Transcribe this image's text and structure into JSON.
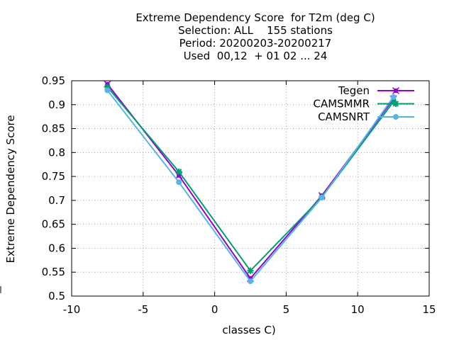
{
  "chart_data": {
    "type": "line",
    "title_lines": [
      "Extreme Dependency Score  for T2m (deg C)",
      "Selection: ALL    155 stations",
      "Period: 20200203-20200217",
      "Used  00,12  + 01 02 ... 24"
    ],
    "xlabel": "classes C)",
    "ylabel": "Extreme Dependency Score",
    "xlim": [
      -10,
      15
    ],
    "ylim": [
      0.5,
      0.95
    ],
    "xticks": [
      -10,
      -5,
      0,
      5,
      10,
      15
    ],
    "yticks": [
      0.5,
      0.55,
      0.6,
      0.65,
      0.7,
      0.75,
      0.8,
      0.85,
      0.9,
      0.95
    ],
    "grid": true,
    "legend_position": "top-right",
    "x": [
      -7.5,
      -2.5,
      2.5,
      7.5,
      12.5
    ],
    "series": [
      {
        "name": "Tegen",
        "color": "#9400d3",
        "marker": "cross-filled",
        "values": [
          0.943,
          0.752,
          0.537,
          0.71,
          0.912
        ]
      },
      {
        "name": "CAMSMMR",
        "color": "#009e73",
        "marker": "star",
        "values": [
          0.937,
          0.76,
          0.553,
          0.707,
          0.906
        ]
      },
      {
        "name": "CAMSNRT",
        "color": "#56b4e9",
        "marker": "circle",
        "values": [
          0.93,
          0.738,
          0.531,
          0.706,
          0.916
        ]
      }
    ]
  }
}
